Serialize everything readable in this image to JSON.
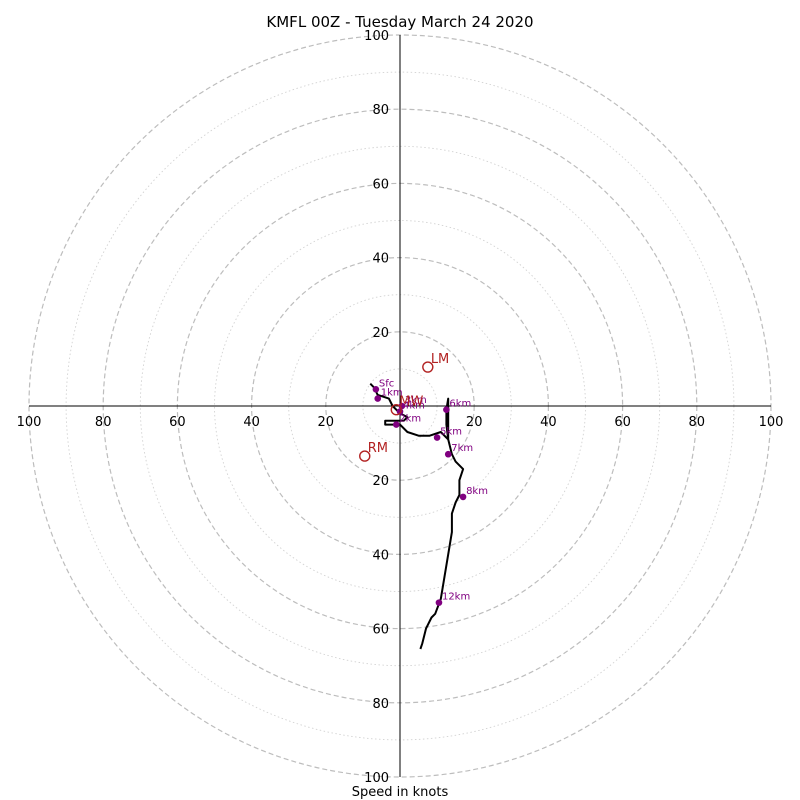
{
  "chart_data": {
    "type": "line",
    "subtype": "hodograph",
    "title": "KMFL 00Z - Tuesday March 24 2020",
    "xlabel": "Speed in knots",
    "ylabel": "",
    "xlim": [
      -100,
      100
    ],
    "ylim": [
      -100,
      100
    ],
    "ring_major": [
      20,
      40,
      60,
      80,
      100
    ],
    "ring_minor": [
      10,
      30,
      50,
      70,
      90
    ],
    "x_ticks": [
      {
        "value": -100,
        "label": "100"
      },
      {
        "value": -80,
        "label": "80"
      },
      {
        "value": -60,
        "label": "60"
      },
      {
        "value": -40,
        "label": "40"
      },
      {
        "value": -20,
        "label": "20"
      },
      {
        "value": 20,
        "label": "20"
      },
      {
        "value": 40,
        "label": "40"
      },
      {
        "value": 60,
        "label": "60"
      },
      {
        "value": 80,
        "label": "80"
      },
      {
        "value": 100,
        "label": "100"
      }
    ],
    "y_ticks": [
      {
        "value": 100,
        "label": "100"
      },
      {
        "value": 80,
        "label": "80"
      },
      {
        "value": 60,
        "label": "60"
      },
      {
        "value": 40,
        "label": "40"
      },
      {
        "value": 20,
        "label": "20"
      },
      {
        "value": -20,
        "label": "20"
      },
      {
        "value": -40,
        "label": "40"
      },
      {
        "value": -60,
        "label": "60"
      },
      {
        "value": -80,
        "label": "80"
      },
      {
        "value": -100,
        "label": "100"
      }
    ],
    "grid": true,
    "series": [
      {
        "color": "#000000",
        "x": [
          -8,
          -7,
          -6,
          -3,
          -2,
          -1,
          0,
          2,
          1,
          -3,
          -4,
          -4,
          0,
          2,
          5,
          8,
          11,
          13,
          12.5,
          12.5,
          13,
          13,
          14,
          15,
          17,
          16,
          16,
          15,
          14,
          14,
          14,
          13,
          12,
          11,
          9.5,
          8.5,
          7,
          6,
          5.5
        ],
        "y": [
          6,
          5,
          3,
          2,
          0,
          -1,
          -2,
          -3,
          -4,
          -4,
          -4,
          -5,
          -5,
          -7,
          -8,
          -8,
          -7,
          -9,
          -5,
          -1,
          2,
          -9,
          -13,
          -15,
          -17,
          -20,
          -24,
          -26,
          -29,
          -31,
          -34,
          -40,
          -46,
          -52,
          -56,
          -57,
          -60,
          -64,
          -65.5
        ]
      }
    ],
    "height_labels": [
      {
        "label": "Sfc",
        "x": -6.5,
        "y": 4.5
      },
      {
        "label": "1km",
        "x": -6,
        "y": 2
      },
      {
        "label": "3km",
        "x": 0.5,
        "y": 0
      },
      {
        "label": "4km",
        "x": 0,
        "y": -1.5
      },
      {
        "label": "2km",
        "x": -1,
        "y": -5
      },
      {
        "label": "5km",
        "x": 10,
        "y": -8.5
      },
      {
        "label": "6km",
        "x": 12.5,
        "y": -1
      },
      {
        "label": "7km",
        "x": 13,
        "y": -13
      },
      {
        "label": "8km",
        "x": 17,
        "y": -24.5
      },
      {
        "label": "12km",
        "x": 10.5,
        "y": -53
      }
    ],
    "storm_motion": [
      {
        "label": "LM",
        "x": 7.5,
        "y": 10.5
      },
      {
        "label": "RM",
        "x": -9.5,
        "y": -13.5
      },
      {
        "label": "MW",
        "x": -1,
        "y": -1
      }
    ]
  }
}
